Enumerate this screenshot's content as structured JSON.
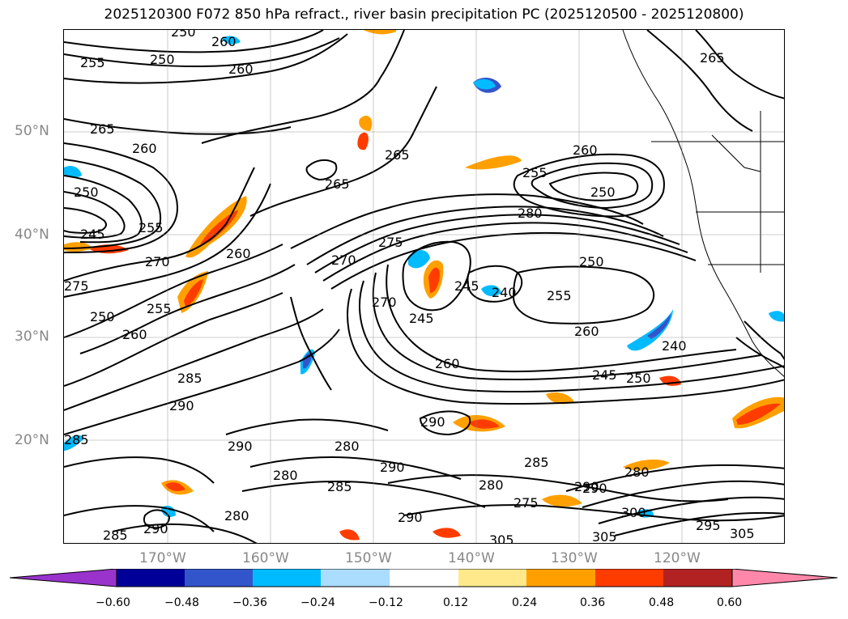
{
  "title": "2025120300 F072 850 hPa refract., river basin precipitation PC (2025120500 - 2025120800)",
  "latitude_labels": [
    "50°N",
    "40°N",
    "30°N",
    "20°N"
  ],
  "longitude_labels": [
    "170°W",
    "160°W",
    "150°W",
    "140°W",
    "130°W",
    "120°W"
  ],
  "colorbar": {
    "tick_labels": [
      "−0.60",
      "−0.48",
      "−0.36",
      "−0.24",
      "−0.12",
      "0.12",
      "0.24",
      "0.36",
      "0.48",
      "0.60"
    ],
    "colors": [
      "#9933cc",
      "#000099",
      "#3355cc",
      "#00bbff",
      "#aaddff",
      "#ffffff",
      "#ffe98a",
      "#ffa000",
      "#ff3c00",
      "#b22222",
      "#ff88aa"
    ]
  },
  "contour_labels": [
    "250",
    "255",
    "250",
    "260",
    "260",
    "260",
    "265",
    "260",
    "250",
    "245",
    "255",
    "270",
    "275",
    "250",
    "255",
    "260",
    "265",
    "265",
    "265",
    "260",
    "255",
    "250",
    "280",
    "270",
    "275",
    "245",
    "240",
    "250",
    "255",
    "260",
    "245",
    "260",
    "245",
    "250",
    "240",
    "270",
    "285",
    "290",
    "285",
    "290",
    "290",
    "280",
    "280",
    "285",
    "290",
    "280",
    "285",
    "290",
    "275",
    "280",
    "290",
    "295",
    "300",
    "305",
    "305",
    "305",
    "285",
    "290",
    "280",
    "290"
  ]
}
